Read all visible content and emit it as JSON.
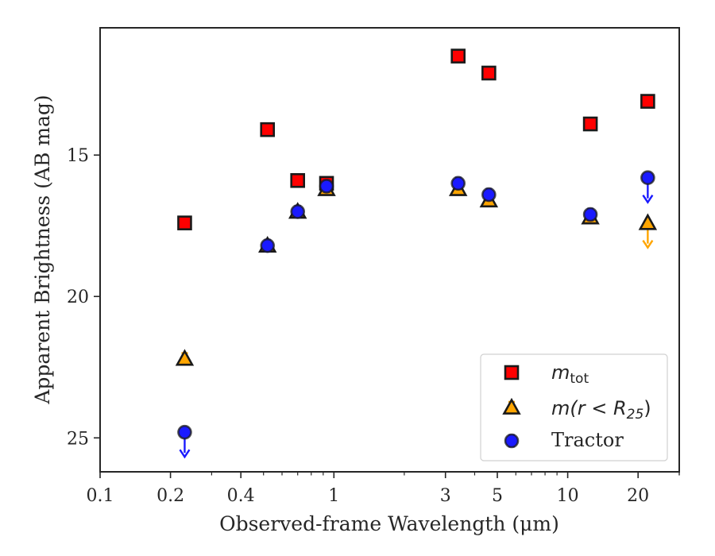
{
  "chart_data": {
    "type": "scatter",
    "xlabel": "Observed-frame Wavelength (μm)",
    "ylabel": "Apparent Brightness (AB mag)",
    "x_scale": "log",
    "y_inverted": true,
    "xlim": [
      0.1,
      30
    ],
    "ylim": [
      26.2,
      10.5
    ],
    "x_ticks": [
      0.1,
      0.2,
      0.4,
      1,
      3,
      5,
      10,
      20
    ],
    "x_tick_labels": [
      "0.1",
      "0.2",
      "0.4",
      "1",
      "3",
      "5",
      "10",
      "20"
    ],
    "y_ticks": [
      15,
      20,
      25
    ],
    "y_tick_labels": [
      "15",
      "20",
      "25"
    ],
    "grid": false,
    "legend_position": "lower right",
    "series": [
      {
        "name": "m_tot",
        "marker": "square",
        "color": "#ff0000",
        "points": [
          {
            "x": 0.23,
            "y": 17.4
          },
          {
            "x": 0.52,
            "y": 14.1
          },
          {
            "x": 0.7,
            "y": 15.9
          },
          {
            "x": 0.93,
            "y": 16.0
          },
          {
            "x": 3.4,
            "y": 11.5
          },
          {
            "x": 4.6,
            "y": 12.1
          },
          {
            "x": 12.5,
            "y": 13.9
          },
          {
            "x": 22.0,
            "y": 13.1
          }
        ]
      },
      {
        "name": "m(r < R25)",
        "marker": "triangle",
        "color": "#ffa500",
        "points": [
          {
            "x": 0.23,
            "y": 22.2
          },
          {
            "x": 0.52,
            "y": 18.2
          },
          {
            "x": 0.7,
            "y": 17.0
          },
          {
            "x": 0.93,
            "y": 16.2
          },
          {
            "x": 3.4,
            "y": 16.2
          },
          {
            "x": 4.6,
            "y": 16.6
          },
          {
            "x": 12.5,
            "y": 17.2
          },
          {
            "x": 22.0,
            "y": 17.4,
            "upper_limit": true
          }
        ]
      },
      {
        "name": "Tractor",
        "marker": "circle",
        "color": "#1a1aff",
        "points": [
          {
            "x": 0.23,
            "y": 24.8,
            "upper_limit": true
          },
          {
            "x": 0.52,
            "y": 18.2
          },
          {
            "x": 0.7,
            "y": 17.0
          },
          {
            "x": 0.93,
            "y": 16.1
          },
          {
            "x": 3.4,
            "y": 16.0
          },
          {
            "x": 4.6,
            "y": 16.4
          },
          {
            "x": 12.5,
            "y": 17.1
          },
          {
            "x": 22.0,
            "y": 15.8,
            "upper_limit": true
          }
        ]
      }
    ]
  },
  "legend": {
    "mtot_symbol": "m",
    "mtot_sub": "tot",
    "mr_prefix": "m(r < R",
    "mr_sub": "25",
    "mr_suffix": ")",
    "tractor": "Tractor"
  }
}
